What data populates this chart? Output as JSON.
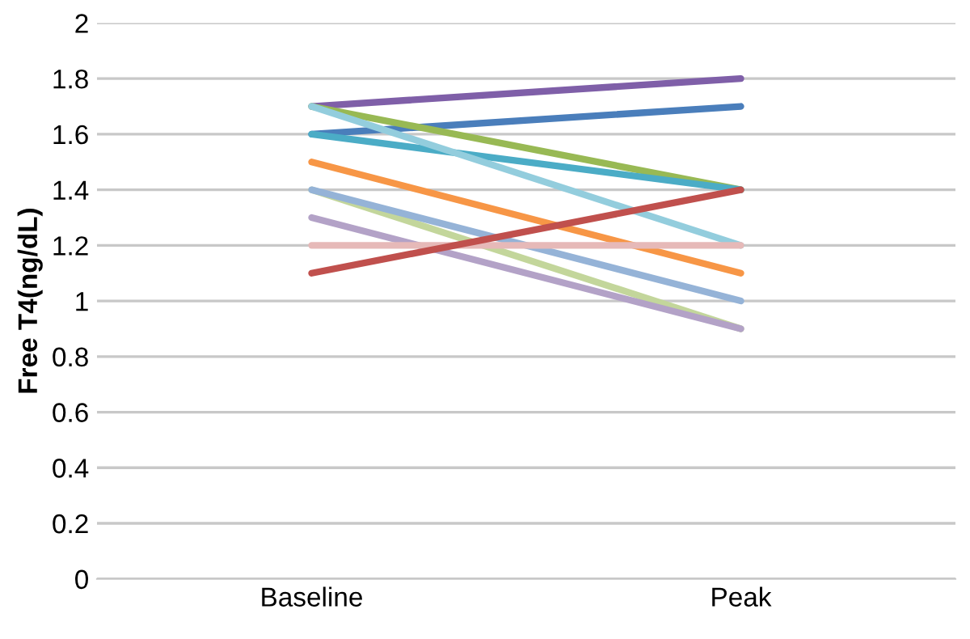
{
  "chart_data": {
    "type": "line",
    "ylabel": "Free T4(ng/dL)",
    "categories": [
      "Baseline",
      "Peak"
    ],
    "ylim": [
      0,
      2
    ],
    "yticks": [
      0,
      0.2,
      0.4,
      0.6,
      0.8,
      1,
      1.2,
      1.4,
      1.6,
      1.8,
      2
    ],
    "grid": "y",
    "marker": "none",
    "line_style": "solid",
    "series": [
      {
        "color": "#7f5fa8",
        "values": [
          1.7,
          1.8
        ]
      },
      {
        "color": "#4a7ebb",
        "values": [
          1.6,
          1.7
        ]
      },
      {
        "color": "#98b954",
        "values": [
          1.7,
          1.4
        ]
      },
      {
        "color": "#4bacc6",
        "values": [
          1.6,
          1.4
        ]
      },
      {
        "color": "#93cddd",
        "values": [
          1.7,
          1.2
        ]
      },
      {
        "color": "#f79646",
        "values": [
          1.5,
          1.1
        ]
      },
      {
        "color": "#c3d69b",
        "values": [
          1.4,
          0.9
        ]
      },
      {
        "color": "#95b3d7",
        "values": [
          1.4,
          1.0
        ]
      },
      {
        "color": "#b3a2c7",
        "values": [
          1.3,
          0.9
        ]
      },
      {
        "color": "#e6b9b8",
        "values": [
          1.2,
          1.2
        ]
      },
      {
        "color": "#c0504d",
        "values": [
          1.1,
          1.4
        ]
      }
    ]
  }
}
